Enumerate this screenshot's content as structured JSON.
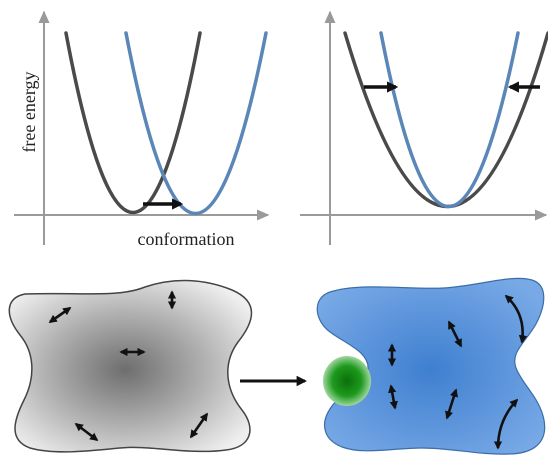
{
  "labels": {
    "y_axis": "free energy",
    "x_axis": "conformation"
  },
  "colors": {
    "axis": "#9a9a9a",
    "curve_gray": "#4a4a4a",
    "curve_blue": "#5a86b8",
    "arrow": "#111111",
    "blob_gray_center": "#6e6e6e",
    "blob_gray_edge": "#efefef",
    "blob_blue_center": "#3f7fd0",
    "blob_blue_edge": "#6ea2e4",
    "ligand": "#1a8a1a"
  },
  "icons": {
    "conformational_shift_arrow": "right-arrow-icon",
    "inward_arrows": [
      "right-arrow-icon",
      "left-arrow-icon"
    ],
    "binding_arrow": "right-arrow-icon",
    "fluctuation_arrows": "double-headed-arrow-icon"
  }
}
